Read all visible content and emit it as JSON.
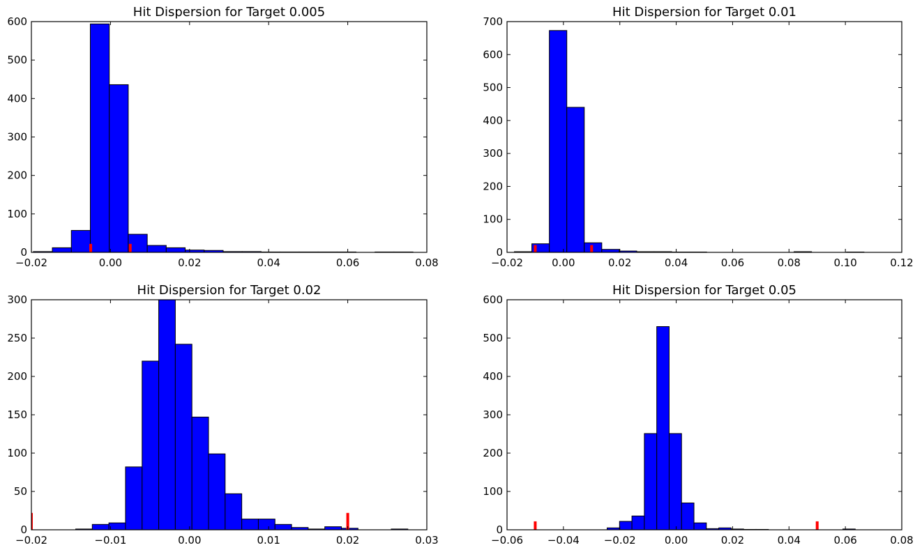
{
  "chart_data": [
    {
      "type": "bar",
      "title": "Hit Dispersion for Target 0.005",
      "xlim": [
        -0.02,
        0.08
      ],
      "ylim": [
        0,
        600
      ],
      "xticks": [
        -0.02,
        0.0,
        0.02,
        0.04,
        0.06,
        0.08
      ],
      "xtick_labels": [
        "−0.02",
        "0.00",
        "0.02",
        "0.04",
        "0.06",
        "0.08"
      ],
      "yticks": [
        0,
        100,
        200,
        300,
        400,
        500,
        600
      ],
      "ytick_labels": [
        "0",
        "100",
        "200",
        "300",
        "400",
        "500",
        "600"
      ],
      "bin_edges": [
        -0.0195,
        -0.0147,
        -0.0099,
        -0.0051,
        -0.0003,
        0.0045,
        0.0093,
        0.0141,
        0.0189,
        0.0237,
        0.0285,
        0.0333,
        0.0381,
        0.0429,
        0.0477,
        0.0525,
        0.0573,
        0.0621,
        0.0669,
        0.0717,
        0.0765
      ],
      "counts": [
        2,
        12,
        57,
        594,
        436,
        47,
        18,
        12,
        6,
        5,
        2,
        2,
        1,
        1,
        1,
        1,
        1,
        0,
        1,
        1
      ],
      "target_markers": [
        -0.005,
        0.005
      ],
      "marker_height": 22,
      "bar_color": "#0000ff",
      "marker_color": "#ff0000"
    },
    {
      "type": "bar",
      "title": "Hit Dispersion for Target 0.01",
      "xlim": [
        -0.02,
        0.12
      ],
      "ylim": [
        0,
        700
      ],
      "xticks": [
        -0.02,
        0.0,
        0.02,
        0.04,
        0.06,
        0.08,
        0.1,
        0.12
      ],
      "xtick_labels": [
        "−0.02",
        "0.00",
        "0.02",
        "0.04",
        "0.06",
        "0.08",
        "0.10",
        "0.12"
      ],
      "yticks": [
        0,
        100,
        200,
        300,
        400,
        500,
        600,
        700
      ],
      "ytick_labels": [
        "0",
        "100",
        "200",
        "300",
        "400",
        "500",
        "600",
        "700"
      ],
      "bin_edges": [
        -0.0174,
        -0.0112,
        -0.005,
        0.0012,
        0.0074,
        0.0136,
        0.0198,
        0.026,
        0.0322,
        0.0384,
        0.0446,
        0.0508,
        0.057,
        0.0632,
        0.0694,
        0.0756,
        0.0818,
        0.088,
        0.0942,
        0.1004,
        0.1066
      ],
      "counts": [
        2,
        26,
        673,
        440,
        29,
        9,
        4,
        2,
        2,
        1,
        1,
        0,
        0,
        0,
        0,
        0,
        2,
        0,
        0,
        1
      ],
      "target_markers": [
        -0.01,
        0.01
      ],
      "marker_height": 22,
      "bar_color": "#0000ff",
      "marker_color": "#ff0000"
    },
    {
      "type": "bar",
      "title": "Hit Dispersion for Target 0.02",
      "xlim": [
        -0.02,
        0.03
      ],
      "ylim": [
        0,
        300
      ],
      "xticks": [
        -0.02,
        -0.01,
        0.0,
        0.01,
        0.02,
        0.03
      ],
      "xtick_labels": [
        "−0.02",
        "−0.01",
        "0.00",
        "0.01",
        "0.02",
        "0.03"
      ],
      "yticks": [
        0,
        50,
        100,
        150,
        200,
        250,
        300
      ],
      "ytick_labels": [
        "0",
        "50",
        "100",
        "150",
        "200",
        "250",
        "300"
      ],
      "bin_edges": [
        -0.0144,
        -0.0123,
        -0.0102,
        -0.0081,
        -0.006,
        -0.0039,
        -0.0018,
        0.0003,
        0.0024,
        0.0045,
        0.0066,
        0.0087,
        0.0108,
        0.0129,
        0.015,
        0.0171,
        0.0192,
        0.0213,
        0.0234,
        0.0255,
        0.0276
      ],
      "counts": [
        1,
        7,
        9,
        82,
        220,
        300,
        242,
        147,
        99,
        47,
        14,
        14,
        7,
        3,
        1,
        4,
        2,
        0,
        0,
        1
      ],
      "target_markers": [
        -0.02,
        0.02
      ],
      "marker_height": 22,
      "bar_color": "#0000ff",
      "marker_color": "#ff0000"
    },
    {
      "type": "bar",
      "title": "Hit Dispersion for Target 0.05",
      "xlim": [
        -0.06,
        0.08
      ],
      "ylim": [
        0,
        600
      ],
      "xticks": [
        -0.06,
        -0.04,
        -0.02,
        0.0,
        0.02,
        0.04,
        0.06,
        0.08
      ],
      "xtick_labels": [
        "−0.06",
        "−0.04",
        "−0.02",
        "0.00",
        "0.02",
        "0.04",
        "0.06",
        "0.08"
      ],
      "yticks": [
        0,
        100,
        200,
        300,
        400,
        500,
        600
      ],
      "ytick_labels": [
        "0",
        "100",
        "200",
        "300",
        "400",
        "500",
        "600"
      ],
      "bin_edges": [
        -0.0245,
        -0.0201,
        -0.0157,
        -0.0113,
        -0.0069,
        -0.0025,
        0.0019,
        0.0063,
        0.0107,
        0.0151,
        0.0195,
        0.0239,
        0.0283,
        0.0327,
        0.0371,
        0.0415,
        0.0459,
        0.0503,
        0.0547,
        0.0591,
        0.0635
      ],
      "counts": [
        5,
        22,
        36,
        251,
        530,
        251,
        70,
        18,
        3,
        5,
        2,
        1,
        1,
        0,
        0,
        0,
        0,
        0,
        0,
        2
      ],
      "target_markers": [
        -0.05,
        0.05
      ],
      "marker_height": 22,
      "bar_color": "#0000ff",
      "marker_color": "#ff0000"
    }
  ]
}
